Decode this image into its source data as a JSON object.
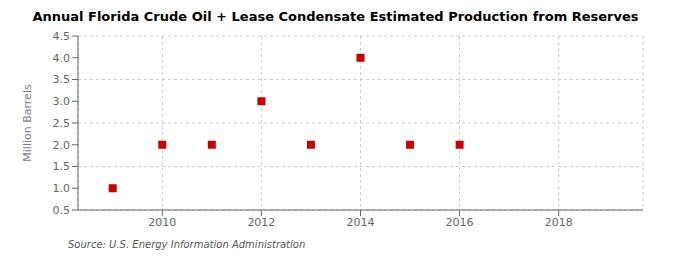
{
  "chart_data": {
    "type": "scatter",
    "title": "Annual Florida Crude Oil + Lease Condensate Estimated Production from Reserves",
    "y_label": "Million Barrels",
    "annotations": [
      "Source: U.S. Energy Information Administration"
    ],
    "x": [
      2009,
      2010,
      2011,
      2012,
      2013,
      2014,
      2015,
      2016
    ],
    "values": [
      1.0,
      2.0,
      2.0,
      3.0,
      2.0,
      4.0,
      2.0,
      2.0
    ],
    "color": "#cc0000",
    "marker": "square",
    "xlim": [
      2008.3,
      2019.7
    ],
    "xticks": [
      2010,
      2012,
      2014,
      2016,
      2018
    ],
    "ylim": [
      0.5,
      4.5
    ],
    "yticks": [
      0.5,
      {
        "value": 1.0,
        "label": "1.0"
      },
      1.5,
      {
        "value": 2.0,
        "label": "2.0"
      },
      2.5,
      {
        "value": 3.0,
        "label": "3.0"
      },
      3.5,
      {
        "value": 4.0,
        "label": "4.0"
      },
      4.5
    ],
    "grid": true
  }
}
